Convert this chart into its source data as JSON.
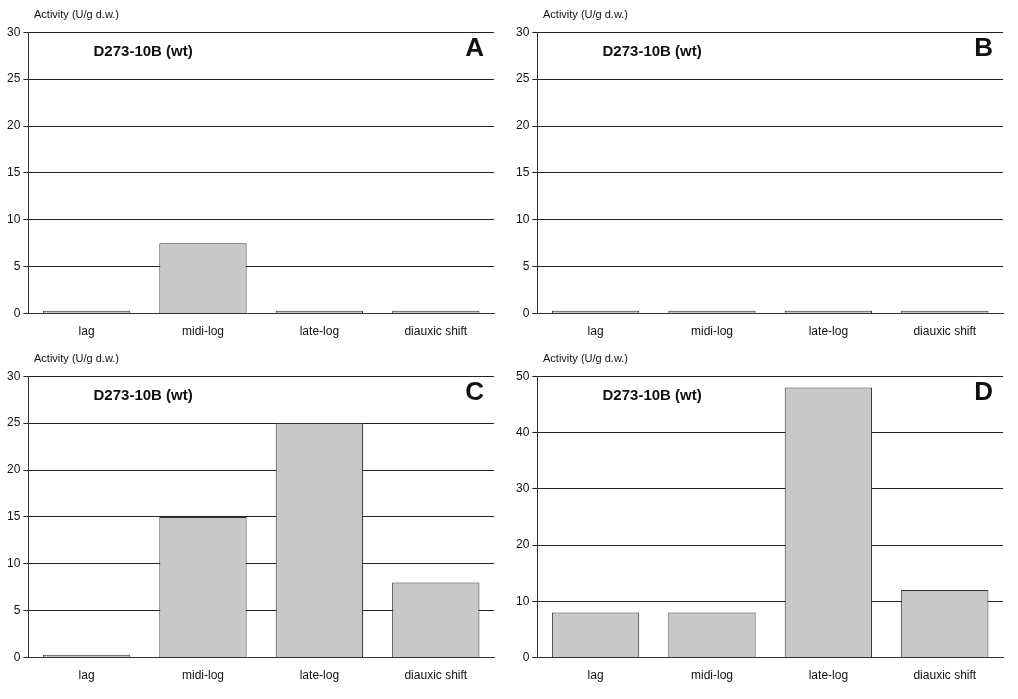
{
  "chart_data": [
    {
      "type": "bar",
      "ylabel": "Activity (U/g d.w.)",
      "annotations": [
        "D273-10B (wt)",
        "A"
      ],
      "categories": [
        "lag",
        "midi-log",
        "late-log",
        "diauxic shift"
      ],
      "values": [
        0.3,
        7.5,
        0.3,
        0.3
      ],
      "color": "#c8c8c8",
      "ylim": [
        0,
        30
      ],
      "yticks": [
        0,
        5,
        10,
        15,
        20,
        25,
        30
      ],
      "grid": "y"
    },
    {
      "type": "bar",
      "ylabel": "Activity (U/g d.w.)",
      "annotations": [
        "D273-10B (wt)",
        "B"
      ],
      "categories": [
        "lag",
        "midi-log",
        "late-log",
        "diauxic shift"
      ],
      "values": [
        0.3,
        0.3,
        0.3,
        0.3
      ],
      "color": "#c8c8c8",
      "ylim": [
        0,
        30
      ],
      "yticks": [
        0,
        5,
        10,
        15,
        20,
        25,
        30
      ],
      "grid": "y"
    },
    {
      "type": "bar",
      "ylabel": "Activity (U/g d.w.)",
      "annotations": [
        "D273-10B (wt)",
        "C"
      ],
      "categories": [
        "lag",
        "midi-log",
        "late-log",
        "diauxic shift"
      ],
      "values": [
        0.3,
        15,
        25,
        8
      ],
      "color": "#c8c8c8",
      "ylim": [
        0,
        30
      ],
      "yticks": [
        0,
        5,
        10,
        15,
        20,
        25,
        30
      ],
      "grid": "y"
    },
    {
      "type": "bar",
      "ylabel": "Activity (U/g d.w.)",
      "annotations": [
        "D273-10B (wt)",
        "D"
      ],
      "categories": [
        "lag",
        "midi-log",
        "late-log",
        "diauxic shift"
      ],
      "values": [
        8,
        8,
        48,
        12
      ],
      "color": "#c8c8c8",
      "ylim": [
        0,
        50
      ],
      "yticks": [
        0,
        10,
        20,
        30,
        40,
        50
      ],
      "grid": "y"
    }
  ]
}
